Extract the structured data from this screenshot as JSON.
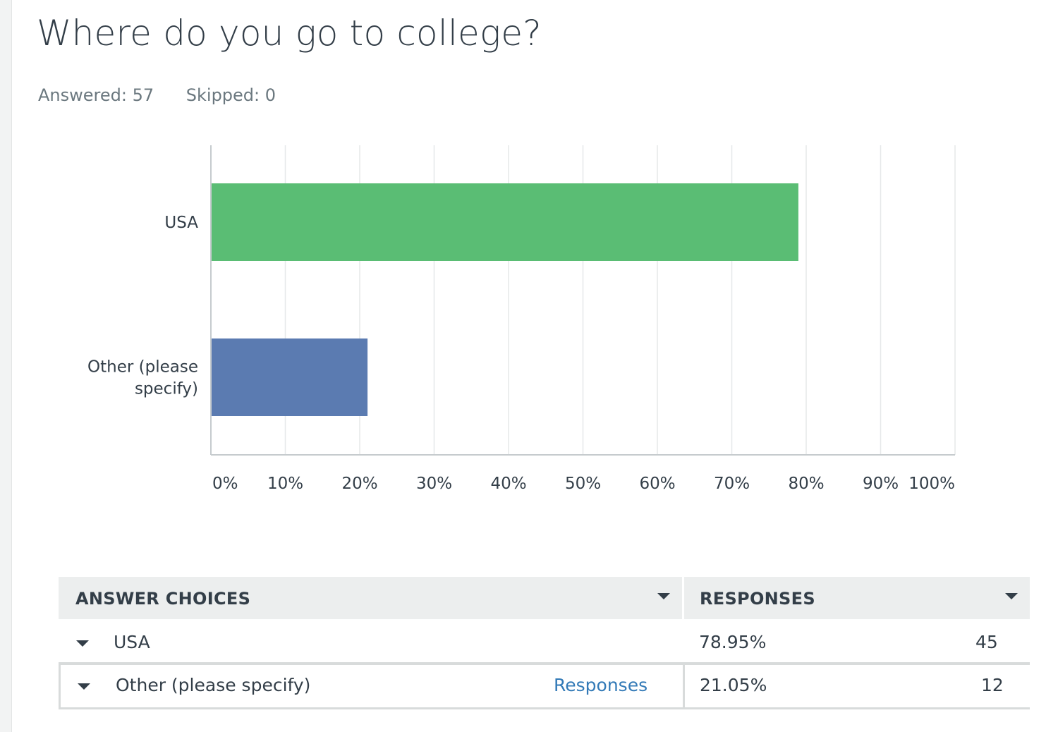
{
  "question": {
    "title": "Where do you go to college?",
    "answered": "Answered: 57",
    "skipped": "Skipped: 0"
  },
  "chart_data": {
    "type": "bar",
    "orientation": "horizontal",
    "categories": [
      "USA",
      "Other (please specify)"
    ],
    "category_lines": [
      [
        "USA"
      ],
      [
        "Other (please",
        "specify)"
      ]
    ],
    "values": [
      78.95,
      21.05
    ],
    "colors": [
      "#5abd74",
      "#5b7bb1"
    ],
    "xlim": [
      0,
      100
    ],
    "ticks": [
      "0%",
      "10%",
      "20%",
      "30%",
      "40%",
      "50%",
      "60%",
      "70%",
      "80%",
      "90%",
      "100%"
    ],
    "grid": true,
    "title": "",
    "xlabel": "",
    "ylabel": ""
  },
  "table": {
    "header_choices": "ANSWER CHOICES",
    "header_responses": "RESPONSES",
    "rows": [
      {
        "choice": "USA",
        "percent": "78.95%",
        "count": "45",
        "link": ""
      },
      {
        "choice": "Other (please specify)",
        "percent": "21.05%",
        "count": "12",
        "link": "Responses"
      }
    ]
  },
  "colors": {
    "usa_bar": "#5abd74",
    "other_bar": "#5b7bb1",
    "link": "#337ab7"
  }
}
